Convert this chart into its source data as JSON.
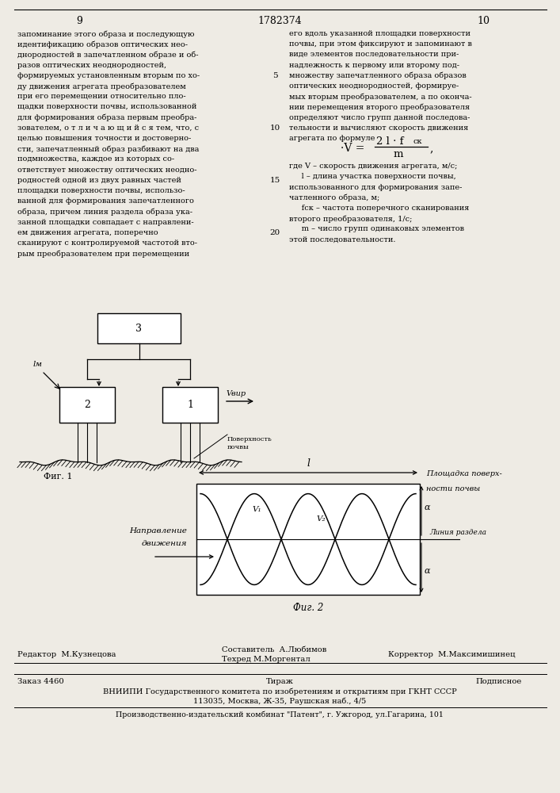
{
  "bg_color": "#eeebe4",
  "page_number_left": "9",
  "page_number_center": "1782374",
  "page_number_right": "10",
  "left_column_text": [
    "запоминание этого образа и последующую",
    "идентификацию образов оптических нео-",
    "днородностей в запечатленном образе и об-",
    "разов оптических неоднородностей,",
    "формируемых установленным вторым по хо-",
    "ду движения агрегата преобразователем",
    "при его перемещении относительно пло-",
    "щадки поверхности почвы, использованной",
    "для формирования образа первым преобра-",
    "зователем, о т л и ч а ю щ и й с я тем, что, с",
    "целью повышения точности и достоверно-",
    "сти, запечатленный образ разбивают на два",
    "подмножества, каждое из которых со-",
    "ответствует множеству оптических неодно-",
    "родностей одной из двух равных частей",
    "площадки поверхности почвы, использо-",
    "ванной для формирования запечатленного",
    "образа, причем линия раздела образа ука-",
    "занной площадки совпадает с направлени-",
    "ем движения агрегата, поперечно",
    "сканируют с контролируемой частотой вто-",
    "рым преобразователем при перемещении"
  ],
  "right_column_text": [
    "его вдоль указанной площадки поверхности",
    "почвы, при этом фиксируют и запоминают в",
    "виде элементов последовательности при-",
    "надлежность к первому или второму под-",
    "множеству запечатленного образа образов",
    "оптических неоднородностей, формируе-",
    "мых вторым преобразователем, а по оконча-",
    "нии перемещения второго преобразователя",
    "определяют число групп данной последова-",
    "тельности и вычисляют скорость движения",
    "агрегата по формуле"
  ],
  "right_desc_text": [
    "где V – скорость движения агрегата, м/с;",
    "     l – длина участка поверхности почвы,",
    "использованного для формирования запе-",
    "чатленного образа, м;",
    "     fск – частота поперечного сканирования",
    "второго преобразователя, 1/с;",
    "     m – число групп одинаковых элементов",
    "этой последовательности."
  ],
  "footer_editor": "Редактор  М.Кузнецова",
  "footer_compositor": "Составитель  А.Любимов",
  "footer_tech": "Техред М.Моргентал",
  "footer_corrector": "Корректор  М.Максимишинец",
  "footer_order": "Заказ 4460",
  "footer_tirazh": "Тираж",
  "footer_podpisnoe": "Подписное",
  "footer_vniip": "ВНИИПИ Государственного комитета по изобретениям и открытиям при ГКНТ СССР",
  "footer_address": "113035, Москва, Ж-35, Раушская наб., 4/5",
  "footer_production": "Производственно-издательский комбинат \"Патент\", г. Ужгород, ул.Гагарина, 101",
  "fig1_label": "Фиг. 1",
  "fig2_label": "Фиг. 2",
  "v_dir_label": "Vвир",
  "poverh_label": "Поверхность\nпочвы",
  "l_label": "l",
  "napravlenie_line1": "Направление",
  "napravlenie_line2": "движения",
  "ploshchadka_label": "Площадка поверх-\nности почвы",
  "liniya_razdela_label": "Линия раздела",
  "v1_label": "V₁",
  "v2_label": "V₂",
  "alpha_label": "α",
  "lm_label": "lм"
}
